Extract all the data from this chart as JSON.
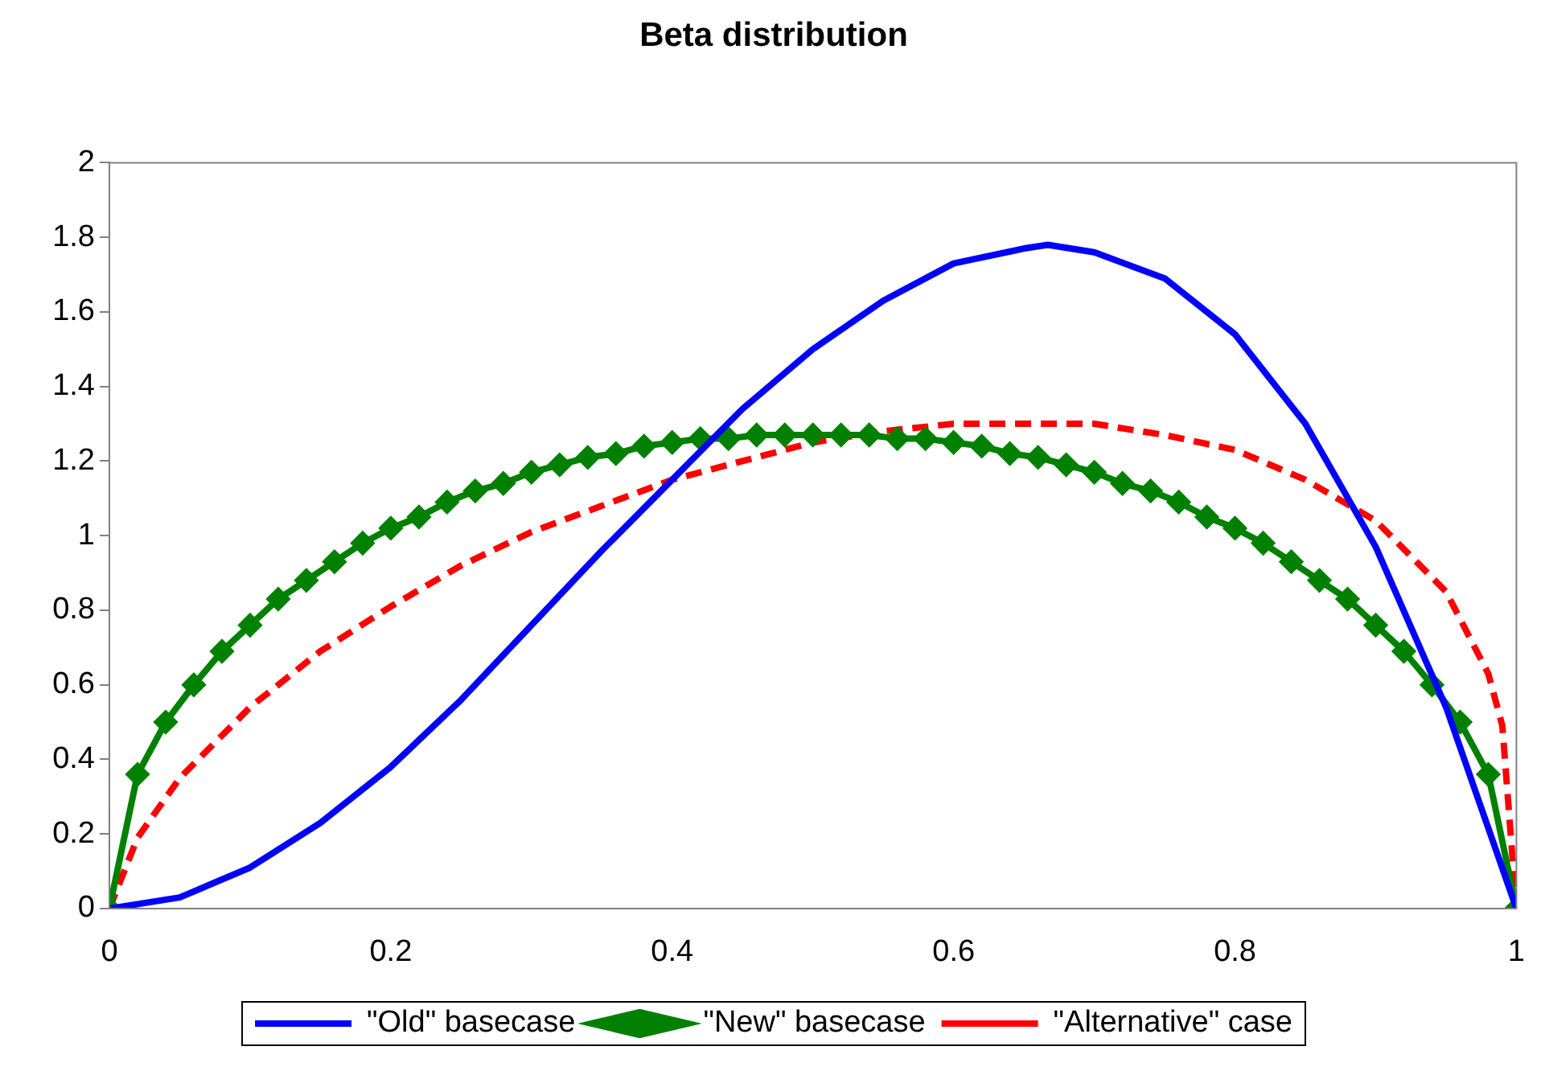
{
  "chart_data": {
    "type": "line",
    "title": "Beta distribution",
    "xlim": [
      0,
      1
    ],
    "xticks": [
      0,
      0.2,
      0.4,
      0.6,
      0.8,
      1
    ],
    "ylim": [
      0,
      2
    ],
    "yticks": [
      0,
      0.2,
      0.4,
      0.6,
      0.8,
      1,
      1.2,
      1.4,
      1.6,
      1.8,
      2
    ],
    "grid": false,
    "legend": "bottom",
    "series": [
      {
        "name": "\"Old\" basecase",
        "color": "#0000ff",
        "marker": "none",
        "line_style": "solid",
        "x": [
          0,
          0.05,
          0.1,
          0.15,
          0.2,
          0.25,
          0.3,
          0.35,
          0.4,
          0.45,
          0.5,
          0.55,
          0.6,
          0.65,
          0.667,
          0.7,
          0.75,
          0.8,
          0.85,
          0.9,
          0.95,
          1
        ],
        "values": [
          0,
          0.03,
          0.11,
          0.23,
          0.38,
          0.56,
          0.76,
          0.96,
          1.15,
          1.34,
          1.5,
          1.63,
          1.73,
          1.77,
          1.78,
          1.76,
          1.69,
          1.54,
          1.3,
          0.97,
          0.54,
          0
        ]
      },
      {
        "name": "\"New\" basecase",
        "color": "#008000",
        "marker": "diamond",
        "line_style": "solid",
        "x": [
          0,
          0.02,
          0.04,
          0.06,
          0.08,
          0.1,
          0.12,
          0.14,
          0.16,
          0.18,
          0.2,
          0.22,
          0.24,
          0.26,
          0.28,
          0.3,
          0.32,
          0.34,
          0.36,
          0.38,
          0.4,
          0.42,
          0.44,
          0.46,
          0.48,
          0.5,
          0.52,
          0.54,
          0.56,
          0.58,
          0.6,
          0.62,
          0.64,
          0.66,
          0.68,
          0.7,
          0.72,
          0.74,
          0.76,
          0.78,
          0.8,
          0.82,
          0.84,
          0.86,
          0.88,
          0.9,
          0.92,
          0.94,
          0.96,
          0.98,
          1
        ],
        "values": [
          0,
          0.36,
          0.5,
          0.6,
          0.69,
          0.76,
          0.83,
          0.88,
          0.93,
          0.98,
          1.02,
          1.05,
          1.09,
          1.12,
          1.14,
          1.17,
          1.19,
          1.21,
          1.22,
          1.24,
          1.25,
          1.26,
          1.26,
          1.27,
          1.27,
          1.27,
          1.27,
          1.27,
          1.26,
          1.26,
          1.25,
          1.24,
          1.22,
          1.21,
          1.19,
          1.17,
          1.14,
          1.12,
          1.09,
          1.05,
          1.02,
          0.98,
          0.93,
          0.88,
          0.83,
          0.76,
          0.69,
          0.6,
          0.5,
          0.36,
          0
        ]
      },
      {
        "name": "\"Alternative\" case",
        "color": "#ff0000",
        "marker": "none",
        "line_style": "dashed",
        "x": [
          0,
          0.02,
          0.05,
          0.1,
          0.15,
          0.2,
          0.25,
          0.3,
          0.35,
          0.4,
          0.45,
          0.5,
          0.55,
          0.6,
          0.65,
          0.7,
          0.75,
          0.8,
          0.85,
          0.9,
          0.95,
          0.98,
          0.99,
          1
        ],
        "values": [
          0,
          0.19,
          0.35,
          0.54,
          0.69,
          0.81,
          0.92,
          1.01,
          1.08,
          1.15,
          1.2,
          1.25,
          1.28,
          1.3,
          1.3,
          1.3,
          1.27,
          1.23,
          1.15,
          1.04,
          0.85,
          0.63,
          0.49,
          0
        ]
      }
    ]
  }
}
